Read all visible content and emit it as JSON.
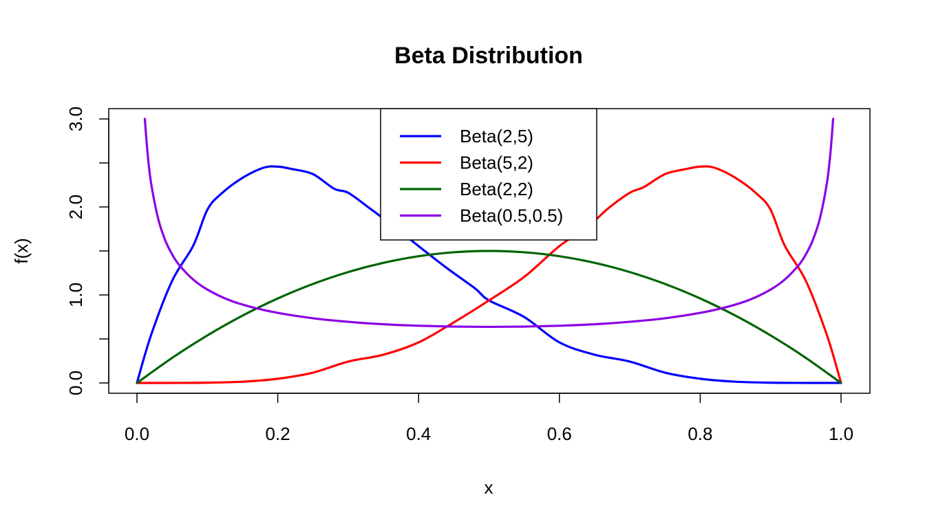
{
  "chart_data": {
    "type": "line",
    "title": "Beta Distribution",
    "xlabel": "x",
    "ylabel": "f(x)",
    "xlim": [
      0,
      1
    ],
    "ylim": [
      0,
      3
    ],
    "x_ticks": [
      "0.0",
      "0.2",
      "0.4",
      "0.6",
      "0.8",
      "1.0"
    ],
    "x_tick_values": [
      0,
      0.2,
      0.4,
      0.6,
      0.8,
      1.0
    ],
    "y_ticks": [
      "0.0",
      "",
      "1.0",
      "",
      "2.0",
      "",
      "3.0"
    ],
    "y_tick_values": [
      0,
      0.5,
      1.0,
      1.5,
      2.0,
      2.5,
      3.0
    ],
    "grid": false,
    "legend_position": "top-center",
    "series": [
      {
        "name": "Beta(2,5)",
        "color": "#0000ff",
        "x": [
          0,
          0.02,
          0.05,
          0.08,
          0.1,
          0.12,
          0.15,
          0.18,
          0.2,
          0.22,
          0.25,
          0.28,
          0.3,
          0.33,
          0.36,
          0.4,
          0.44,
          0.48,
          0.5,
          0.55,
          0.6,
          0.65,
          0.7,
          0.75,
          0.8,
          0.85,
          0.9,
          0.95,
          1.0
        ],
        "y": [
          0,
          0.543,
          1.161,
          1.561,
          1.968,
          2.152,
          2.331,
          2.446,
          2.458,
          2.431,
          2.373,
          2.207,
          2.161,
          1.988,
          1.808,
          1.555,
          1.306,
          1.075,
          0.938,
          0.749,
          0.461,
          0.321,
          0.243,
          0.117,
          0.048,
          0.014,
          0.003,
          0.0002,
          0
        ]
      },
      {
        "name": "Beta(5,2)",
        "color": "#ff0000",
        "x": [
          0,
          0.05,
          0.1,
          0.15,
          0.2,
          0.25,
          0.3,
          0.35,
          0.4,
          0.45,
          0.5,
          0.55,
          0.6,
          0.64,
          0.67,
          0.7,
          0.72,
          0.75,
          0.78,
          0.8,
          0.82,
          0.85,
          0.88,
          0.9,
          0.92,
          0.95,
          0.98,
          1.0
        ],
        "y": [
          0,
          0.0002,
          0.003,
          0.014,
          0.048,
          0.117,
          0.243,
          0.321,
          0.461,
          0.688,
          0.938,
          1.205,
          1.555,
          1.774,
          1.988,
          2.161,
          2.226,
          2.373,
          2.431,
          2.458,
          2.446,
          2.331,
          2.152,
          1.968,
          1.561,
          1.161,
          0.543,
          0
        ]
      },
      {
        "name": "Beta(2,2)",
        "color": "#006400",
        "x": [
          0,
          0.05,
          0.1,
          0.15,
          0.2,
          0.25,
          0.3,
          0.35,
          0.4,
          0.45,
          0.5,
          0.55,
          0.6,
          0.65,
          0.7,
          0.75,
          0.8,
          0.85,
          0.9,
          0.95,
          1.0
        ],
        "y": [
          0,
          0.285,
          0.54,
          0.765,
          0.96,
          1.125,
          1.26,
          1.365,
          1.44,
          1.485,
          1.5,
          1.485,
          1.44,
          1.365,
          1.26,
          1.125,
          0.96,
          0.765,
          0.54,
          0.285,
          0
        ]
      },
      {
        "name": "Beta(0.5,0.5)",
        "color": "#8a00e6",
        "x": [
          0.0112,
          0.015,
          0.02,
          0.03,
          0.04,
          0.05,
          0.06,
          0.08,
          0.1,
          0.13,
          0.16,
          0.2,
          0.25,
          0.3,
          0.35,
          0.4,
          0.45,
          0.5,
          0.55,
          0.6,
          0.65,
          0.7,
          0.75,
          0.8,
          0.84,
          0.87,
          0.9,
          0.92,
          0.94,
          0.95,
          0.96,
          0.97,
          0.98,
          0.985,
          0.9888
        ],
        "y": [
          3.0,
          2.619,
          2.274,
          1.87,
          1.624,
          1.46,
          1.34,
          1.174,
          1.061,
          0.944,
          0.868,
          0.796,
          0.735,
          0.695,
          0.667,
          0.65,
          0.64,
          0.637,
          0.64,
          0.65,
          0.667,
          0.695,
          0.735,
          0.796,
          0.868,
          0.944,
          1.061,
          1.174,
          1.34,
          1.46,
          1.624,
          1.87,
          2.274,
          2.619,
          3.0
        ]
      }
    ]
  }
}
